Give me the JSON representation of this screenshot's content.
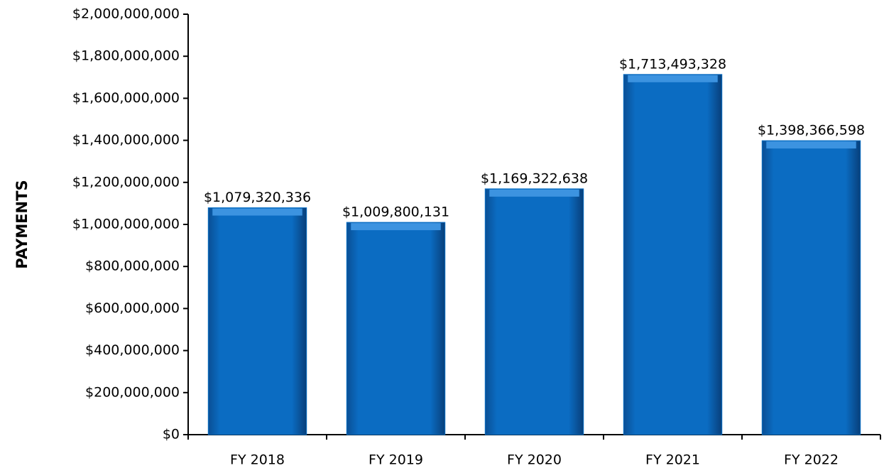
{
  "chart_data": {
    "type": "bar",
    "y_axis_label": "PAYMENTS",
    "categories": [
      "FY 2018",
      "FY 2019",
      "FY 2020",
      "FY 2021",
      "FY 2022"
    ],
    "values": [
      1079320336,
      1009800131,
      1169322638,
      1713493328,
      1398366598
    ],
    "value_labels": [
      "$1,079,320,336",
      "$1,009,800,131",
      "$1,169,322,638",
      "$1,713,493,328",
      "$1,398,366,598"
    ],
    "color": "#0a6fc4",
    "ylim": [
      0,
      2000000000
    ],
    "yticks": [
      {
        "value": 0,
        "label": "$0"
      },
      {
        "value": 200000000,
        "label": "$200,000,000"
      },
      {
        "value": 400000000,
        "label": "$400,000,000"
      },
      {
        "value": 600000000,
        "label": "$600,000,000"
      },
      {
        "value": 800000000,
        "label": "$800,000,000"
      },
      {
        "value": 1000000000,
        "label": "$1,000,000,000"
      },
      {
        "value": 1200000000,
        "label": "$1,200,000,000"
      },
      {
        "value": 1400000000,
        "label": "$1,400,000,000"
      },
      {
        "value": 1600000000,
        "label": "$1,600,000,000"
      },
      {
        "value": 1800000000,
        "label": "$1,800,000,000"
      },
      {
        "value": 2000000000,
        "label": "$2,000,000,000"
      }
    ],
    "grid": false
  }
}
